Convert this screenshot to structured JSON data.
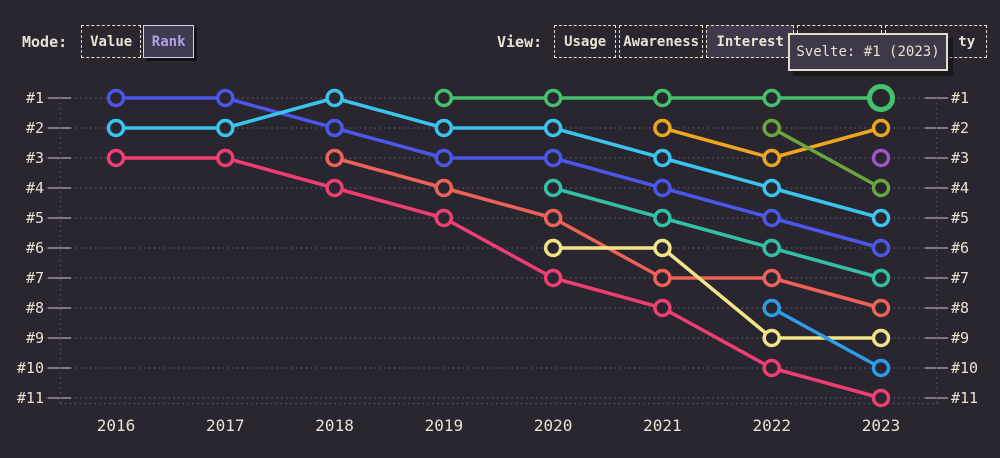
{
  "controls": {
    "mode": {
      "label": "Mode:",
      "options": [
        {
          "label": "Value",
          "selected": false
        },
        {
          "label": "Rank",
          "selected": true
        }
      ]
    },
    "view": {
      "label": "View:",
      "options": [
        {
          "label": "Usage",
          "selected": false
        },
        {
          "label": "Awareness",
          "selected": false
        },
        {
          "label": "Interest",
          "selected": true
        },
        {
          "label": "",
          "selected": false
        },
        {
          "label": "ty",
          "selected": false
        }
      ]
    }
  },
  "tooltip": {
    "text": "Svelte: #1 (2023)"
  },
  "theme": {
    "background": "#292630",
    "text_cream": "#e9e2d3",
    "grid_dotted": "#534e5c",
    "tick": "#978fa3",
    "tooltip_bg": "#3e3949",
    "selected_bg": "#3e3a4b",
    "rank_selected_text": "#b3a1e3",
    "rank_selected_border": "#d5cdee"
  },
  "chart_data": {
    "type": "line",
    "variant": "rank-bump",
    "grid": "dotted",
    "legend_position": "none",
    "x_labels": [
      "2016",
      "2017",
      "2018",
      "2019",
      "2020",
      "2021",
      "2022",
      "2023"
    ],
    "y_rank_labels": [
      "#1",
      "#2",
      "#3",
      "#4",
      "#5",
      "#6",
      "#7",
      "#8",
      "#9",
      "#10",
      "#11"
    ],
    "y_axis_sides": "both",
    "series": [
      {
        "name": "series-blue",
        "color": "#4a57e8",
        "ranks": [
          1,
          1,
          2,
          3,
          3,
          4,
          5,
          6
        ]
      },
      {
        "name": "series-cyan",
        "color": "#3ac4ee",
        "ranks": [
          2,
          2,
          1,
          2,
          2,
          3,
          4,
          5
        ]
      },
      {
        "name": "series-pink",
        "color": "#ee3e74",
        "ranks": [
          3,
          3,
          4,
          5,
          7,
          8,
          10,
          11
        ]
      },
      {
        "name": "series-salmon",
        "color": "#ee6357",
        "ranks": [
          null,
          null,
          3,
          4,
          5,
          7,
          7,
          8
        ]
      },
      {
        "name": "svelte-green",
        "color": "#44c16d",
        "ranks": [
          null,
          null,
          null,
          1,
          1,
          1,
          1,
          1
        ]
      },
      {
        "name": "series-teal",
        "color": "#33c0a4",
        "ranks": [
          null,
          null,
          null,
          null,
          4,
          5,
          6,
          7
        ]
      },
      {
        "name": "series-yellow",
        "color": "#f3e38a",
        "ranks": [
          null,
          null,
          null,
          null,
          6,
          6,
          9,
          9
        ]
      },
      {
        "name": "series-orange",
        "color": "#eea61e",
        "ranks": [
          null,
          null,
          null,
          null,
          null,
          2,
          3,
          2
        ]
      },
      {
        "name": "series-olive",
        "color": "#69a73d",
        "ranks": [
          null,
          null,
          null,
          null,
          null,
          null,
          2,
          4
        ]
      },
      {
        "name": "series-azure",
        "color": "#2f9ce9",
        "ranks": [
          null,
          null,
          null,
          null,
          null,
          null,
          8,
          10
        ]
      },
      {
        "name": "series-purple",
        "color": "#a054c8",
        "ranks": [
          null,
          null,
          null,
          null,
          null,
          null,
          null,
          3
        ]
      }
    ],
    "highlight_point": {
      "series": "svelte-green",
      "x_label": "2023",
      "rank": 1
    }
  }
}
